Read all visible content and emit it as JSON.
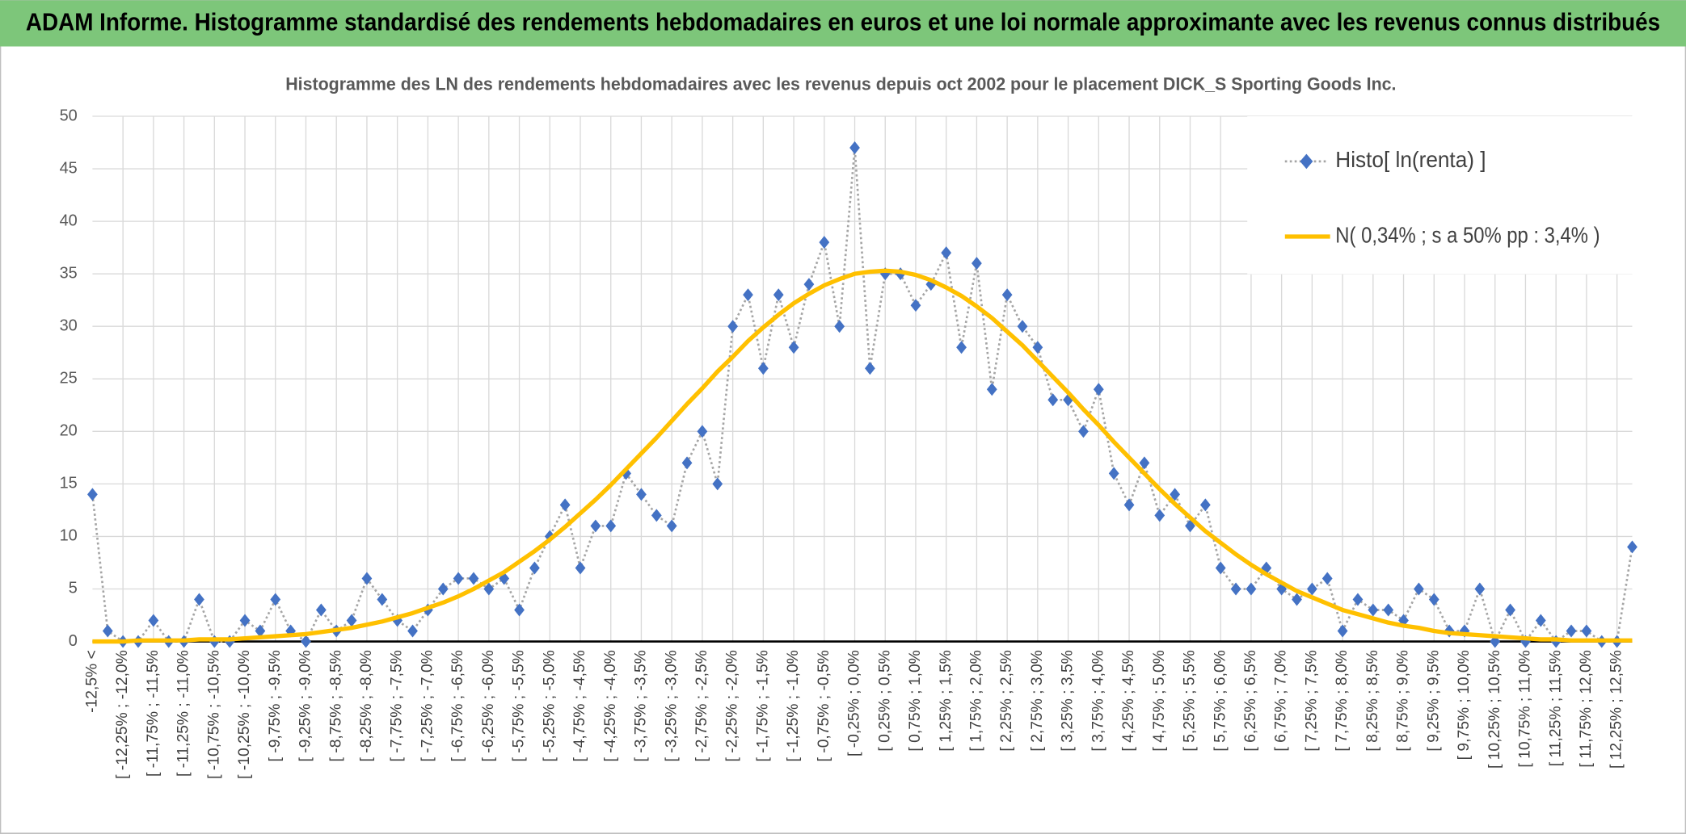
{
  "header": {
    "title": "ADAM Informe. Histogramme standardisé des rendements hebdomadaires en euros et une loi normale approximante avec les revenus connus distribués"
  },
  "chart_data": {
    "type": "line",
    "title": "Histogramme des LN des rendements hebdomadaires avec les revenus depuis oct 2002 pour le placement DICK_S Sporting Goods Inc.",
    "categories": [
      "-12,5% <",
      null,
      "[ -12,25% ; -12,0%",
      null,
      "[ -11,75% ; -11,5%",
      null,
      "[ -11,25% ; -11,0%",
      null,
      "[ -10,75% ; -10,5%",
      null,
      "[ -10,25% ; -10,0%",
      null,
      "[ -9,75% ; -9,5%",
      null,
      "[ -9,25% ; -9,0%",
      null,
      "[ -8,75% ; -8,5%",
      null,
      "[ -8,25% ; -8,0%",
      null,
      "[ -7,75% ; -7,5%",
      null,
      "[ -7,25% ; -7,0%",
      null,
      "[ -6,75% ; -6,5%",
      null,
      "[ -6,25% ; -6,0%",
      null,
      "[ -5,75% ; -5,5%",
      null,
      "[ -5,25% ; -5,0%",
      null,
      "[ -4,75% ; -4,5%",
      null,
      "[ -4,25% ; -4,0%",
      null,
      "[ -3,75% ; -3,5%",
      null,
      "[ -3,25% ; -3,0%",
      null,
      "[ -2,75% ; -2,5%",
      null,
      "[ -2,25% ; -2,0%",
      null,
      "[ -1,75% ; -1,5%",
      null,
      "[ -1,25% ; -1,0%",
      null,
      "[ -0,75% ; -0,5%",
      null,
      "[ -0,25% ; 0,0%",
      null,
      "[ 0,25% ; 0,5%",
      null,
      "[ 0,75% ; 1,0%",
      null,
      "[ 1,25% ; 1,5%",
      null,
      "[ 1,75% ; 2,0%",
      null,
      "[ 2,25% ; 2,5%",
      null,
      "[ 2,75% ; 3,0%",
      null,
      "[ 3,25% ; 3,5%",
      null,
      "[ 3,75% ; 4,0%",
      null,
      "[ 4,25% ; 4,5%",
      null,
      "[ 4,75% ; 5,0%",
      null,
      "[ 5,25% ; 5,5%",
      null,
      "[ 5,75% ; 6,0%",
      null,
      "[ 6,25% ; 6,5%",
      null,
      "[ 6,75% ; 7,0%",
      null,
      "[ 7,25% ; 7,5%",
      null,
      "[ 7,75% ; 8,0%",
      null,
      "[ 8,25% ; 8,5%",
      null,
      "[ 8,75% ; 9,0%",
      null,
      "[ 9,25% ; 9,5%",
      null,
      "[ 9,75% ; 10,0%",
      null,
      "[ 10,25% ; 10,5%",
      null,
      "[ 10,75% ; 11,0%",
      null,
      "[ 11,25% ; 11,5%",
      null,
      "[ 11,75% ; 12,0%",
      null,
      "[ 12,25% ; 12,5%",
      null
    ],
    "series": [
      {
        "name": "Histo[ ln(renta) ]",
        "color": "#4472c4",
        "line_color": "#a5a5a5",
        "values": [
          14,
          1,
          0,
          0,
          2,
          0,
          0,
          4,
          0,
          0,
          2,
          1,
          4,
          1,
          0,
          3,
          1,
          2,
          6,
          4,
          2,
          1,
          3,
          5,
          6,
          6,
          5,
          6,
          3,
          7,
          10,
          13,
          7,
          11,
          11,
          16,
          14,
          12,
          11,
          17,
          20,
          15,
          30,
          33,
          26,
          33,
          28,
          34,
          38,
          30,
          47,
          26,
          35,
          35,
          32,
          34,
          37,
          28,
          36,
          24,
          33,
          30,
          28,
          23,
          23,
          20,
          24,
          16,
          13,
          17,
          12,
          14,
          11,
          13,
          7,
          5,
          5,
          7,
          5,
          4,
          5,
          6,
          1,
          4,
          3,
          3,
          2,
          5,
          4,
          1,
          1,
          5,
          0,
          3,
          0,
          2,
          0,
          1,
          1,
          0,
          0,
          9
        ]
      },
      {
        "name": "N( 0,34% ; s a 50% pp : 3,4% )",
        "color": "#ffc000",
        "values": [
          0.0,
          0.0,
          0.0,
          0.1,
          0.1,
          0.1,
          0.1,
          0.2,
          0.2,
          0.2,
          0.3,
          0.4,
          0.5,
          0.6,
          0.7,
          0.9,
          1.1,
          1.3,
          1.6,
          1.9,
          2.3,
          2.7,
          3.2,
          3.7,
          4.3,
          5.0,
          5.8,
          6.6,
          7.6,
          8.6,
          9.7,
          10.9,
          12.2,
          13.5,
          14.9,
          16.4,
          17.9,
          19.4,
          21.0,
          22.6,
          24.1,
          25.7,
          27.1,
          28.6,
          29.9,
          31.1,
          32.2,
          33.1,
          33.9,
          34.5,
          35.0,
          35.2,
          35.3,
          35.2,
          34.9,
          34.4,
          33.7,
          32.9,
          31.9,
          30.8,
          29.5,
          28.2,
          26.7,
          25.2,
          23.7,
          22.1,
          20.6,
          19.0,
          17.5,
          16.0,
          14.5,
          13.1,
          11.8,
          10.5,
          9.4,
          8.3,
          7.3,
          6.4,
          5.6,
          4.8,
          4.2,
          3.6,
          3.0,
          2.6,
          2.2,
          1.8,
          1.5,
          1.3,
          1.0,
          0.8,
          0.7,
          0.6,
          0.5,
          0.4,
          0.3,
          0.2,
          0.2,
          0.1,
          0.1,
          0.1,
          0.1,
          0.1
        ]
      }
    ],
    "ylim": [
      0,
      50
    ],
    "yticks": [
      0,
      5,
      10,
      15,
      20,
      25,
      30,
      35,
      40,
      45,
      50
    ],
    "grid": true,
    "legend": "top-right"
  }
}
